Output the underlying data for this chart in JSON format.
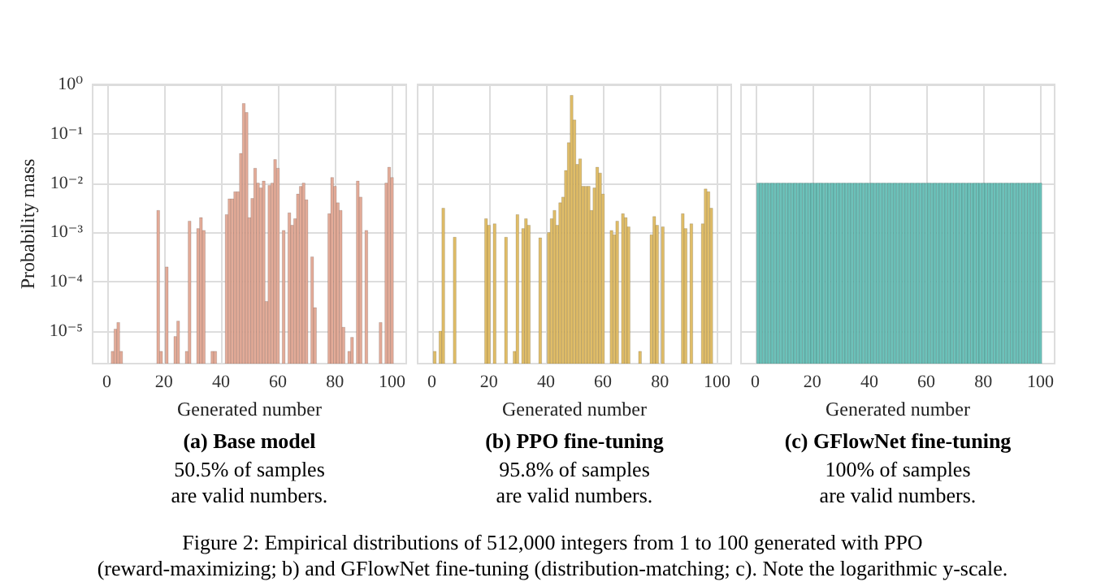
{
  "chart_data": [
    {
      "type": "bar",
      "title": "(a) Base model",
      "xlabel": "Generated number",
      "ylabel": "Probability mass",
      "log": "y",
      "grid": true,
      "color": "#e3ab98",
      "annotations": [
        "50.5% of samples\nare valid numbers.",
        "Figure 2: Empirical distributions of 512,000 integers from 1 to 100 generated with PPO\n(reward-maximizing; b) and GFlowNet fine-tuning (distribution-matching; c). Note the logarithmic y-scale."
      ],
      "xlim": [
        -5,
        105
      ],
      "xticks": [
        0,
        20,
        40,
        60,
        80,
        100
      ],
      "ylim": [
        2.2e-06,
        1
      ],
      "yticks": [
        {
          "value": 1,
          "label": "10⁰"
        },
        {
          "value": 0.1,
          "label": "10⁻¹"
        },
        {
          "value": 0.01,
          "label": "10⁻²"
        },
        {
          "value": 0.001,
          "label": "10⁻³"
        },
        {
          "value": 0.0001,
          "label": "10⁻⁴"
        },
        {
          "value": 1e-05,
          "label": "10⁻⁵"
        }
      ],
      "x": [
        2,
        3,
        4,
        5,
        6,
        7,
        8,
        9,
        10,
        11,
        12,
        13,
        14,
        15,
        16,
        17,
        18,
        19,
        20,
        21,
        22,
        23,
        24,
        25,
        26,
        27,
        28,
        29,
        30,
        31,
        32,
        33,
        34,
        35,
        36,
        37,
        38,
        39,
        40,
        41,
        42,
        43,
        44,
        45,
        46,
        47,
        48,
        49,
        50,
        51,
        52,
        53,
        54,
        55,
        56,
        57,
        58,
        59,
        60,
        61,
        62,
        63,
        64,
        65,
        66,
        67,
        68,
        69,
        70,
        71,
        72,
        73,
        74,
        75,
        76,
        77,
        78,
        79,
        80,
        81,
        82,
        83,
        84,
        85,
        86,
        87,
        88,
        89,
        90,
        91,
        92,
        93,
        94,
        95,
        96,
        97,
        98,
        99,
        100
      ],
      "values": [
        3.9e-06,
        1.1e-05,
        1.5e-05,
        3.9e-06,
        null,
        null,
        null,
        null,
        null,
        null,
        null,
        null,
        null,
        null,
        null,
        null,
        0.0028,
        3.9e-06,
        null,
        0.0002,
        null,
        null,
        7.8e-06,
        1.6e-05,
        null,
        null,
        3.9e-06,
        0.0017,
        null,
        null,
        0.0012,
        0.002,
        0.0011,
        null,
        null,
        3.9e-06,
        3.9e-06,
        null,
        null,
        null,
        0.0023,
        0.0048,
        0.0048,
        0.0067,
        0.0067,
        0.04,
        0.41,
        0.27,
        0.002,
        0.0049,
        0.02,
        0.01,
        0.008,
        0.011,
        4e-05,
        0.009,
        0.01,
        0.03,
        0.02,
        null,
        0.0011,
        null,
        0.0025,
        0.0014,
        0.0019,
        0.006,
        0.0086,
        0.01,
        0.0046,
        null,
        0.00032,
        3e-05,
        null,
        null,
        null,
        null,
        0.0024,
        0.013,
        0.0086,
        0.004,
        0.0028,
        1.2e-05,
        null,
        3.9e-06,
        7.5e-06,
        null,
        0.011,
        0.0052,
        null,
        0.0011,
        null,
        null,
        null,
        null,
        1.5e-05,
        null,
        0.01,
        0.021,
        0.013
      ]
    },
    {
      "type": "bar",
      "title": "(b) PPO fine-tuning",
      "xlabel": "Generated number",
      "log": "y",
      "grid": true,
      "color": "#e0bd68",
      "tick_labels": "x",
      "annotations": [
        "95.8% of samples\nare valid numbers."
      ],
      "xlim": [
        -5,
        105
      ],
      "xticks": [
        0,
        20,
        40,
        60,
        80,
        100
      ],
      "ylim": [
        2.2e-06,
        1
      ],
      "yticks": [
        {
          "value": 1,
          "label": null
        },
        {
          "value": 0.1,
          "label": null
        },
        {
          "value": 0.01,
          "label": null
        },
        {
          "value": 0.001,
          "label": null
        },
        {
          "value": 0.0001,
          "label": null
        },
        {
          "value": 1e-05,
          "label": null
        }
      ],
      "x": [
        1,
        2,
        3,
        4,
        5,
        6,
        7,
        8,
        9,
        10,
        11,
        12,
        13,
        14,
        15,
        16,
        17,
        18,
        19,
        20,
        21,
        22,
        23,
        24,
        25,
        26,
        27,
        28,
        29,
        30,
        31,
        32,
        33,
        34,
        35,
        36,
        37,
        38,
        39,
        40,
        41,
        42,
        43,
        44,
        45,
        46,
        47,
        48,
        49,
        50,
        51,
        52,
        53,
        54,
        55,
        56,
        57,
        58,
        59,
        60,
        61,
        62,
        63,
        64,
        65,
        66,
        67,
        68,
        69,
        70,
        71,
        72,
        73,
        74,
        75,
        76,
        77,
        78,
        79,
        80,
        81,
        82,
        83,
        84,
        85,
        86,
        87,
        88,
        89,
        90,
        91,
        92,
        93,
        94,
        95,
        96,
        97,
        98
      ],
      "values": [
        3.9e-06,
        null,
        1e-05,
        0.0031,
        null,
        null,
        null,
        0.0008,
        null,
        null,
        null,
        null,
        null,
        null,
        null,
        null,
        null,
        null,
        0.0019,
        0.0014,
        null,
        0.0015,
        null,
        null,
        null,
        0.0008,
        null,
        null,
        3.9e-06,
        0.0023,
        null,
        0.0012,
        0.0019,
        0.0014,
        null,
        null,
        null,
        0.00078,
        null,
        null,
        0.001,
        0.0019,
        0.0028,
        0.0014,
        0.004,
        0.0052,
        0.018,
        0.066,
        0.6,
        0.19,
        0.024,
        0.031,
        0.0086,
        0.0086,
        0.0086,
        0.0028,
        0.008,
        0.021,
        0.016,
        0.006,
        null,
        null,
        0.0011,
        0.0009,
        0.0017,
        null,
        0.0024,
        0.002,
        0.0013,
        null,
        null,
        null,
        3.9e-06,
        null,
        null,
        null,
        0.0009,
        0.0021,
        0.0014,
        null,
        0.0013,
        null,
        null,
        null,
        null,
        null,
        null,
        0.0024,
        0.0012,
        null,
        0.0015,
        null,
        null,
        null,
        0.0015,
        0.0076,
        0.0067,
        0.0031
      ]
    },
    {
      "type": "bar",
      "title": "(c) GFlowNet fine-tuning",
      "xlabel": "Generated number",
      "log": "y",
      "grid": true,
      "color": "#6cc2ba",
      "tick_labels": "x",
      "annotations": [
        "100% of samples\nare valid numbers."
      ],
      "xlim": [
        -5,
        105
      ],
      "xticks": [
        0,
        20,
        40,
        60,
        80,
        100
      ],
      "ylim": [
        2.2e-06,
        1
      ],
      "yticks": [
        {
          "value": 1,
          "label": null
        },
        {
          "value": 0.1,
          "label": null
        },
        {
          "value": 0.01,
          "label": null
        },
        {
          "value": 0.001,
          "label": null
        },
        {
          "value": 0.0001,
          "label": null
        },
        {
          "value": 1e-05,
          "label": null
        }
      ],
      "x": [
        1,
        2,
        3,
        4,
        5,
        6,
        7,
        8,
        9,
        10,
        11,
        12,
        13,
        14,
        15,
        16,
        17,
        18,
        19,
        20,
        21,
        22,
        23,
        24,
        25,
        26,
        27,
        28,
        29,
        30,
        31,
        32,
        33,
        34,
        35,
        36,
        37,
        38,
        39,
        40,
        41,
        42,
        43,
        44,
        45,
        46,
        47,
        48,
        49,
        50,
        51,
        52,
        53,
        54,
        55,
        56,
        57,
        58,
        59,
        60,
        61,
        62,
        63,
        64,
        65,
        66,
        67,
        68,
        69,
        70,
        71,
        72,
        73,
        74,
        75,
        76,
        77,
        78,
        79,
        80,
        81,
        82,
        83,
        84,
        85,
        86,
        87,
        88,
        89,
        90,
        91,
        92,
        93,
        94,
        95,
        96,
        97,
        98,
        99,
        100
      ],
      "values": [
        0.01,
        0.01,
        0.01,
        0.01,
        0.01,
        0.01,
        0.01,
        0.01,
        0.01,
        0.01,
        0.01,
        0.01,
        0.01,
        0.01,
        0.01,
        0.01,
        0.01,
        0.01,
        0.01,
        0.01,
        0.01,
        0.01,
        0.01,
        0.01,
        0.01,
        0.01,
        0.01,
        0.01,
        0.01,
        0.01,
        0.01,
        0.01,
        0.01,
        0.01,
        0.01,
        0.01,
        0.01,
        0.01,
        0.01,
        0.01,
        0.01,
        0.01,
        0.01,
        0.01,
        0.01,
        0.01,
        0.01,
        0.01,
        0.01,
        0.01,
        0.01,
        0.01,
        0.01,
        0.01,
        0.01,
        0.01,
        0.01,
        0.01,
        0.01,
        0.01,
        0.01,
        0.01,
        0.01,
        0.01,
        0.01,
        0.01,
        0.01,
        0.01,
        0.01,
        0.01,
        0.01,
        0.01,
        0.01,
        0.01,
        0.01,
        0.01,
        0.01,
        0.01,
        0.01,
        0.01,
        0.01,
        0.01,
        0.01,
        0.01,
        0.01,
        0.01,
        0.01,
        0.01,
        0.01,
        0.01,
        0.01,
        0.01,
        0.01,
        0.01,
        0.01,
        0.01,
        0.01,
        0.01,
        0.01,
        0.01
      ]
    }
  ]
}
